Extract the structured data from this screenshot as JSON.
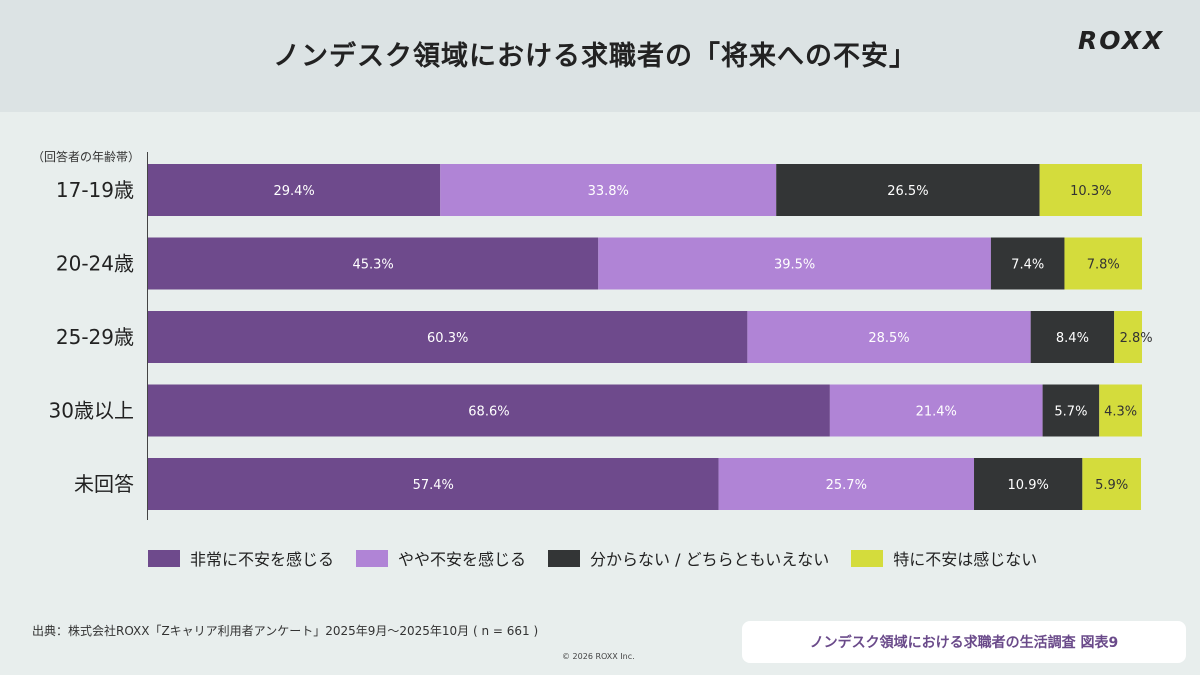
{
  "header": {
    "title": "ノンデスク領域における求職者の「将来への不安」",
    "logo": "ROXX"
  },
  "colors": {
    "very_anxious": "#6e4a8c",
    "somewhat_anxious": "#b084d6",
    "unsure": "#333536",
    "not_anxious": "#d4dc3c"
  },
  "chart_data": {
    "type": "bar",
    "orientation": "horizontal",
    "stacked": "percent",
    "ylabel": "（回答者の年齢帯）",
    "categories": [
      "17-19歳",
      "20-24歳",
      "25-29歳",
      "30歳以上",
      "未回答"
    ],
    "series": [
      {
        "name": "非常に不安を感じる",
        "values": [
          29.4,
          45.3,
          60.3,
          68.6,
          57.4
        ],
        "color": "#6e4a8c",
        "label_color": "#ffffff"
      },
      {
        "name": "やや不安を感じる",
        "values": [
          33.8,
          39.5,
          28.5,
          21.4,
          25.7
        ],
        "color": "#b084d6",
        "label_color": "#ffffff"
      },
      {
        "name": "分からない / どちらともいえない",
        "values": [
          26.5,
          7.4,
          8.4,
          5.7,
          10.9
        ],
        "color": "#333536",
        "label_color": "#ffffff"
      },
      {
        "name": "特に不安は感じない",
        "values": [
          10.3,
          7.8,
          2.8,
          4.3,
          5.9
        ],
        "color": "#d4dc3c",
        "label_color": "#333333"
      }
    ],
    "legend": "bottom",
    "grid": false
  },
  "footer": {
    "source": "出典：株式会社ROXX「Zキャリア利用者アンケート」2025年9月～2025年10月 ( n = 661 )",
    "copyright": "© 2026 ROXX Inc.",
    "badge": "ノンデスク領域における求職者の生活調査 図表9"
  }
}
